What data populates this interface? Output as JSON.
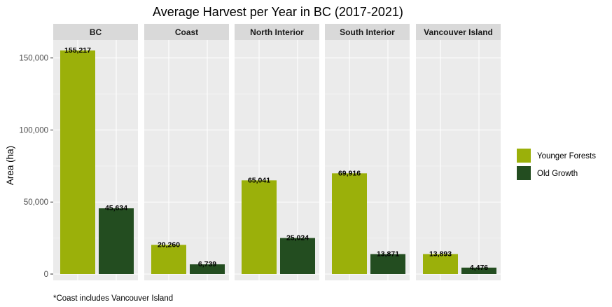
{
  "chart_data": {
    "type": "bar",
    "title": "Average Harvest per Year in BC (2017-2021)",
    "ylabel": "Area (ha)",
    "xlabel": "",
    "ylim": [
      0,
      165000
    ],
    "yticks": [
      0,
      50000,
      100000,
      150000
    ],
    "ytick_labels": [
      "0",
      "50,000",
      "100,000",
      "150,000"
    ],
    "grid": true,
    "legend_position": "right",
    "facets": [
      "BC",
      "Coast",
      "North Interior",
      "South Interior",
      "Vancouver Island"
    ],
    "series": [
      {
        "name": "Younger Forests",
        "color": "#9BB00A",
        "values": [
          155217,
          20260,
          65041,
          69916,
          13893
        ],
        "labels": [
          "155,217",
          "20,260",
          "65,041",
          "69,916",
          "13,893"
        ]
      },
      {
        "name": "Old Growth",
        "color": "#234D20",
        "values": [
          45634,
          6739,
          25024,
          13871,
          4476
        ],
        "labels": [
          "45,634",
          "6,739",
          "25,024",
          "13,871",
          "4,476"
        ]
      }
    ],
    "caption": "*Coast includes Vancouver Island"
  },
  "style": {
    "panel_bg": "#EBEBEB",
    "strip_bg": "#D9D9D9",
    "grid_major": "#FFFFFF",
    "grid_minor": "#F5F5F5"
  }
}
